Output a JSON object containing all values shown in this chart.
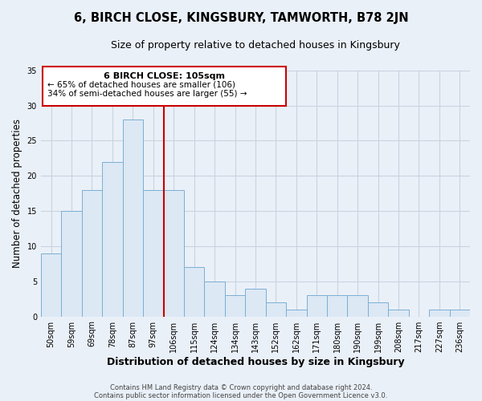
{
  "title": "6, BIRCH CLOSE, KINGSBURY, TAMWORTH, B78 2JN",
  "subtitle": "Size of property relative to detached houses in Kingsbury",
  "xlabel": "Distribution of detached houses by size in Kingsbury",
  "ylabel": "Number of detached properties",
  "categories": [
    "50sqm",
    "59sqm",
    "69sqm",
    "78sqm",
    "87sqm",
    "97sqm",
    "106sqm",
    "115sqm",
    "124sqm",
    "134sqm",
    "143sqm",
    "152sqm",
    "162sqm",
    "171sqm",
    "180sqm",
    "190sqm",
    "199sqm",
    "208sqm",
    "217sqm",
    "227sqm",
    "236sqm"
  ],
  "values": [
    9,
    15,
    18,
    22,
    28,
    18,
    18,
    7,
    5,
    3,
    4,
    2,
    1,
    3,
    3,
    3,
    2,
    1,
    0,
    1,
    1
  ],
  "bar_color": "#dce8f4",
  "bar_edge_color": "#7aafd4",
  "vline_x_idx": 6,
  "vline_color": "#cc0000",
  "ylim": [
    0,
    35
  ],
  "yticks": [
    0,
    5,
    10,
    15,
    20,
    25,
    30,
    35
  ],
  "annotation_title": "6 BIRCH CLOSE: 105sqm",
  "annotation_line1": "← 65% of detached houses are smaller (106)",
  "annotation_line2": "34% of semi-detached houses are larger (55) →",
  "annotation_box_color": "#ffffff",
  "annotation_box_edge": "#cc0000",
  "footer_line1": "Contains HM Land Registry data © Crown copyright and database right 2024.",
  "footer_line2": "Contains public sector information licensed under the Open Government Licence v3.0.",
  "background_color": "#eaf0f8",
  "grid_color": "#c8d4e0",
  "title_fontsize": 10.5,
  "subtitle_fontsize": 9,
  "axis_label_fontsize": 8.5,
  "tick_label_fontsize": 7,
  "footer_fontsize": 6
}
